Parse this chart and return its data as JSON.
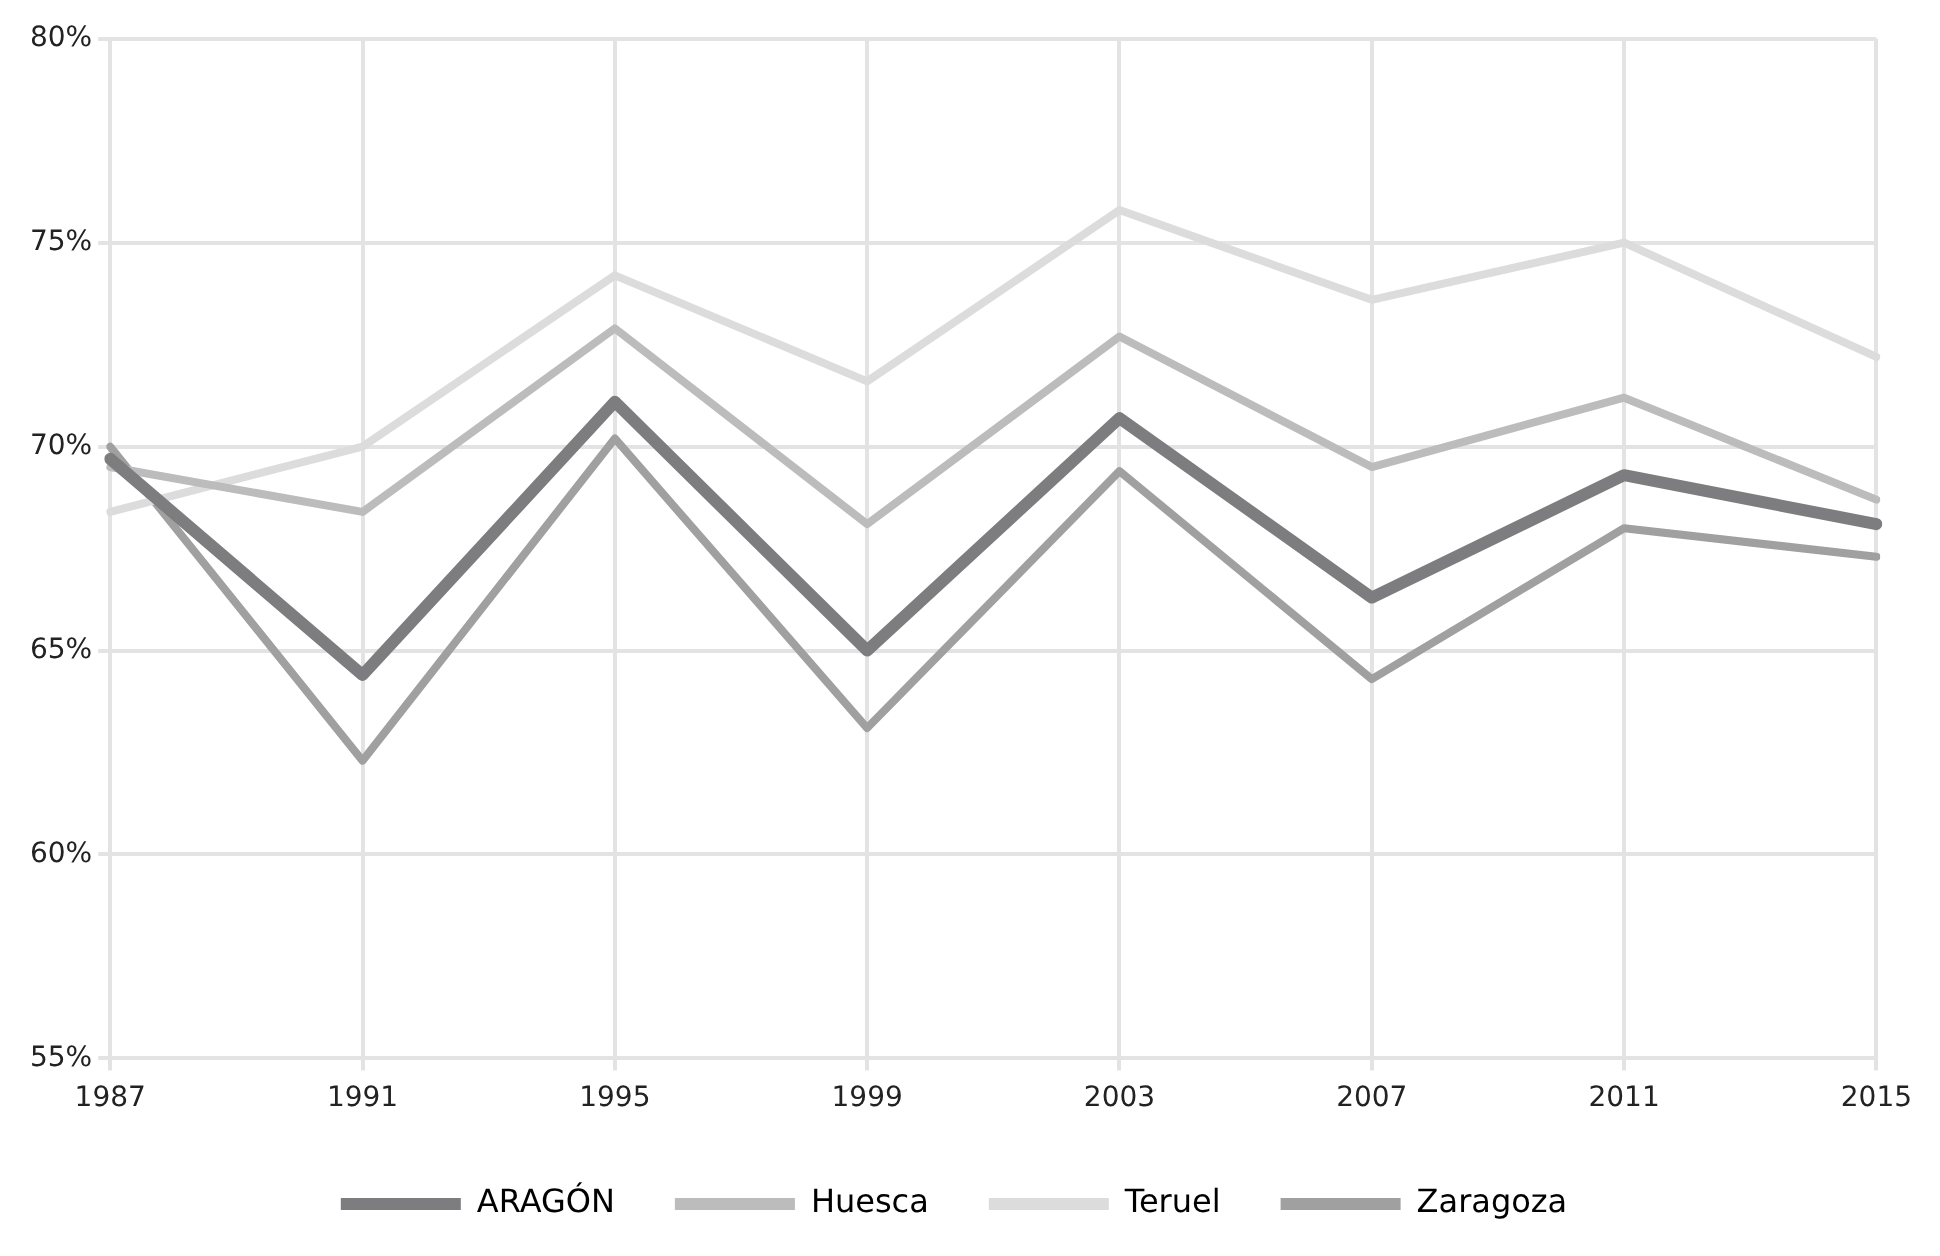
{
  "chart_data": {
    "type": "line",
    "categories": [
      "1987",
      "1991",
      "1995",
      "1999",
      "2003",
      "2007",
      "2011",
      "2015"
    ],
    "series": [
      {
        "name": "ARAGÓN",
        "color": "#7d7d7f",
        "values": [
          69.7,
          64.4,
          71.1,
          65.0,
          70.7,
          66.3,
          69.3,
          68.1
        ]
      },
      {
        "name": "Huesca",
        "color": "#bcbcbc",
        "values": [
          69.5,
          68.4,
          72.9,
          68.1,
          72.7,
          69.5,
          71.2,
          68.7
        ]
      },
      {
        "name": "Teruel",
        "color": "#dcdcdc",
        "values": [
          68.4,
          70.0,
          74.2,
          71.6,
          75.8,
          73.6,
          75.0,
          72.2
        ]
      },
      {
        "name": "Zaragoza",
        "color": "#a0a0a0",
        "values": [
          70.0,
          62.3,
          70.2,
          63.1,
          69.4,
          64.3,
          68.0,
          67.3
        ]
      }
    ],
    "ylim": [
      55,
      80
    ],
    "yticks": [
      {
        "value": 55,
        "label": "55%"
      },
      {
        "value": 60,
        "label": "60%"
      },
      {
        "value": 65,
        "label": "65%"
      },
      {
        "value": 70,
        "label": "70%"
      },
      {
        "value": 75,
        "label": "75%"
      },
      {
        "value": 80,
        "label": "80%"
      }
    ],
    "grid": true,
    "legend": "bottom",
    "marker": "none",
    "line_style": "solid"
  }
}
